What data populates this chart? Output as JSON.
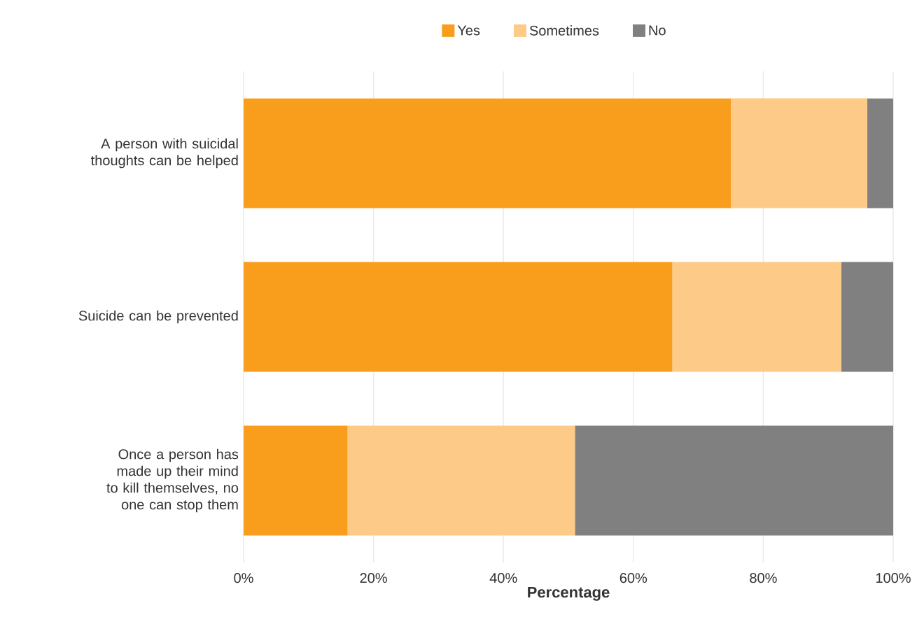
{
  "chart_data": {
    "type": "bar",
    "orientation": "horizontal",
    "stacked": true,
    "categories": [
      "A person with suicidal thoughts can be helped",
      "Suicide can be prevented",
      "Once a person has made up their mind to kill themselves, no one can stop them"
    ],
    "series": [
      {
        "name": "Yes",
        "color": "#f99d1c",
        "values": [
          75,
          66,
          16
        ]
      },
      {
        "name": "Sometimes",
        "color": "#fdcb87",
        "values": [
          21,
          26,
          35
        ]
      },
      {
        "name": "No",
        "color": "#808080",
        "values": [
          4,
          8,
          49
        ]
      }
    ],
    "xlabel": "Percentage",
    "xlim": [
      0,
      100
    ],
    "xticks": [
      {
        "value": 0,
        "label": "0%"
      },
      {
        "value": 20,
        "label": "20%"
      },
      {
        "value": 40,
        "label": "40%"
      },
      {
        "value": 60,
        "label": "60%"
      },
      {
        "value": 80,
        "label": "80%"
      },
      {
        "value": 100,
        "label": "100%"
      }
    ],
    "grid": "x",
    "legend": "top"
  }
}
